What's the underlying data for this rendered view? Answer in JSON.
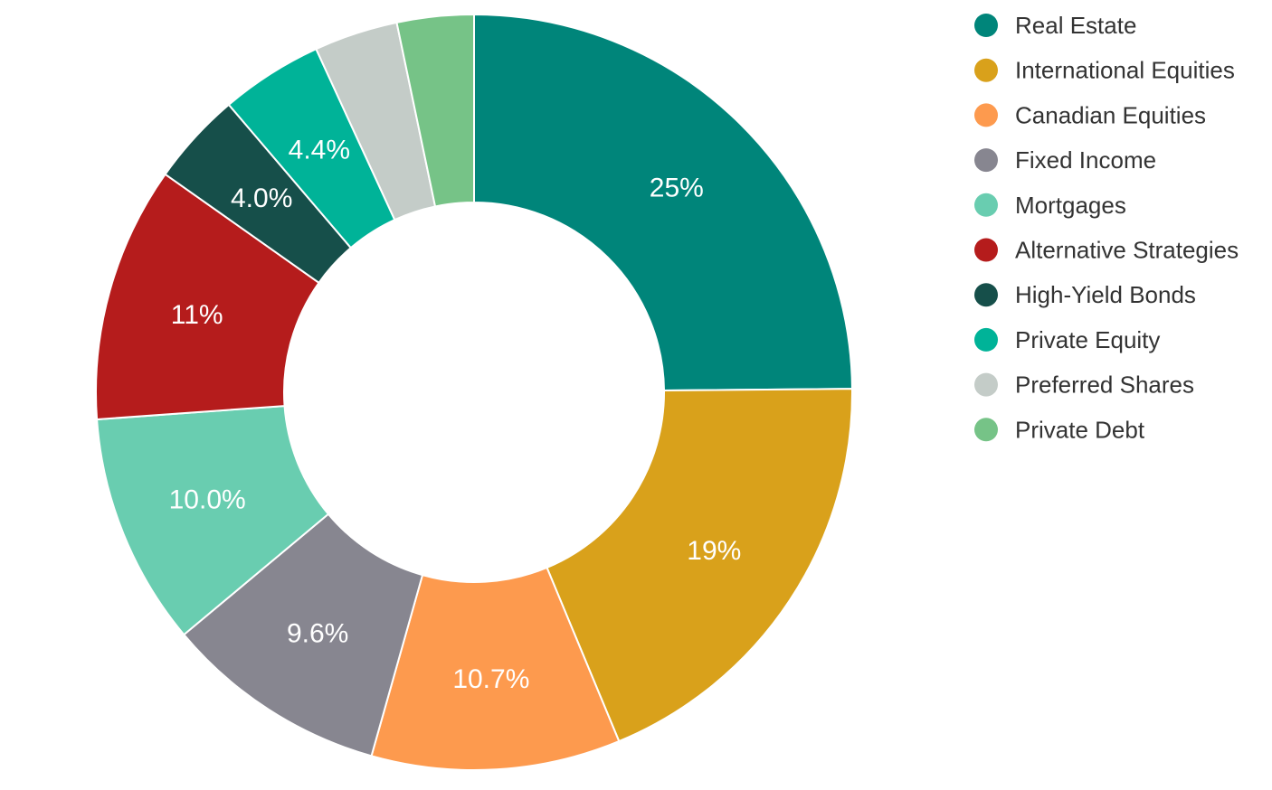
{
  "chart_data": {
    "type": "pie",
    "donut": true,
    "legend_position": "right",
    "series": [
      {
        "name": "Real Estate",
        "value": 25.0,
        "label": "25%",
        "color": "#00857a"
      },
      {
        "name": "International Equities",
        "value": 19.0,
        "label": "19%",
        "color": "#d9a11b"
      },
      {
        "name": "Canadian Equities",
        "value": 10.7,
        "label": "10.7%",
        "color": "#fd9a4e"
      },
      {
        "name": "Fixed Income",
        "value": 9.6,
        "label": "9.6%",
        "color": "#878690"
      },
      {
        "name": "Mortgages",
        "value": 10.0,
        "label": "10.0%",
        "color": "#69cdb0"
      },
      {
        "name": "Alternative Strategies",
        "value": 11.0,
        "label": "11%",
        "color": "#b51c1c"
      },
      {
        "name": "High-Yield Bonds",
        "value": 4.0,
        "label": "4.0%",
        "color": "#164f4a"
      },
      {
        "name": "Private Equity",
        "value": 4.4,
        "label": "4.4%",
        "color": "#00b398"
      },
      {
        "name": "Preferred Shares",
        "value": 3.6,
        "label": "",
        "color": "#c4ccc8"
      },
      {
        "name": "Private Debt",
        "value": 3.3,
        "label": "",
        "color": "#76c387"
      }
    ]
  }
}
